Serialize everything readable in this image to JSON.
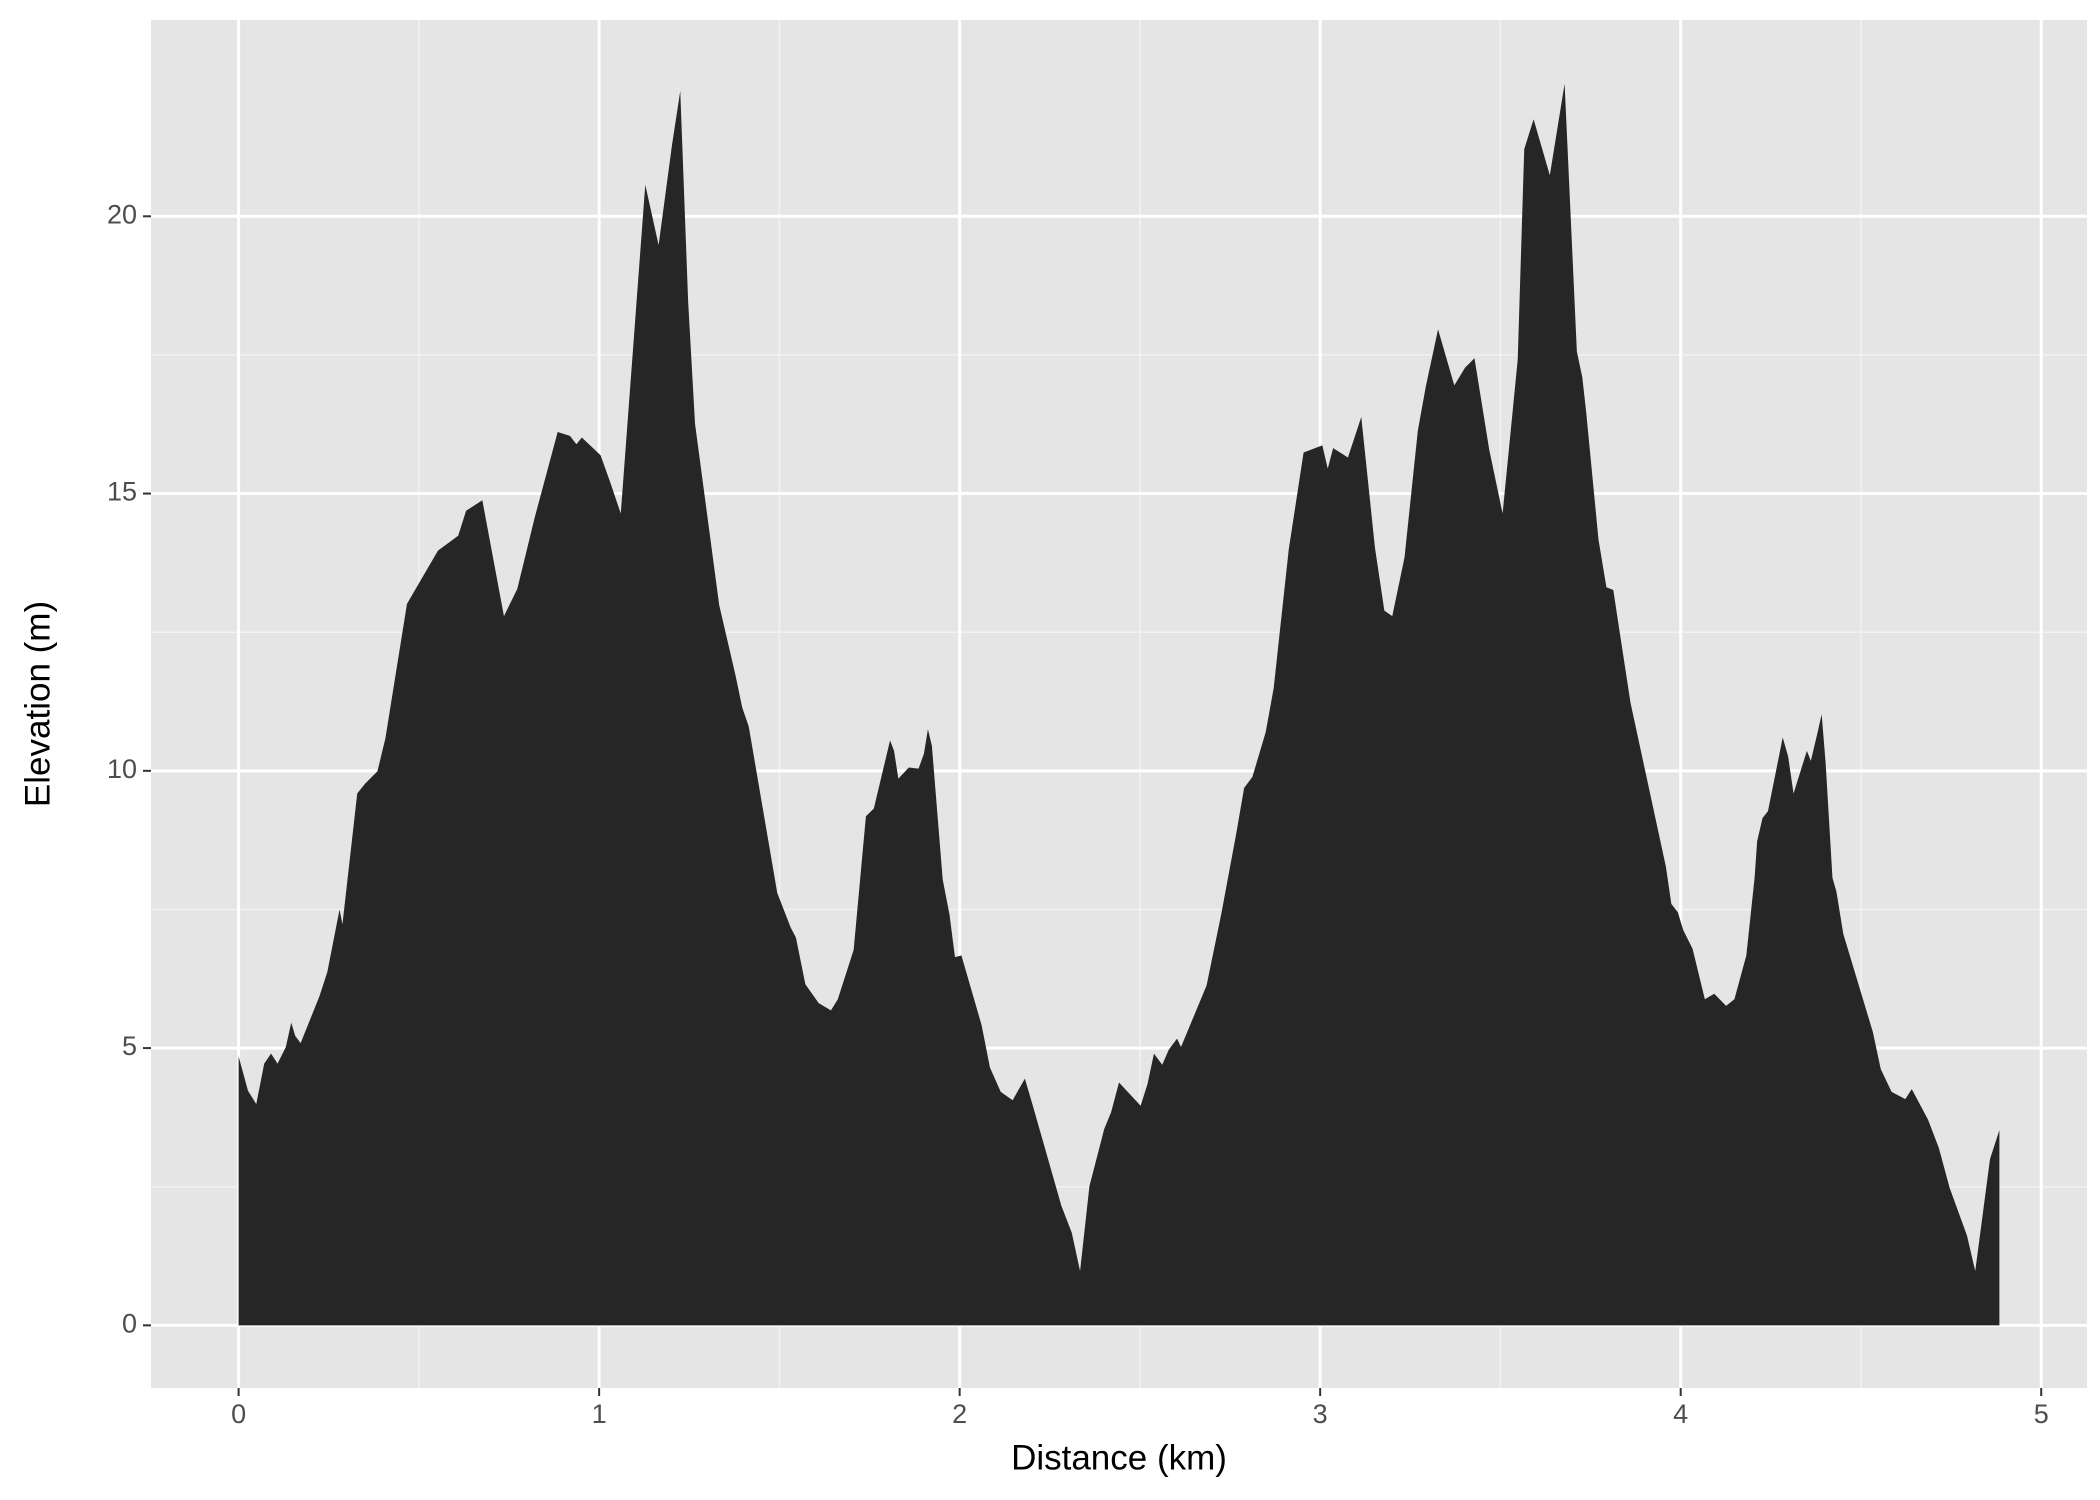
{
  "chart_data": {
    "type": "area",
    "x_label": "Distance (km)",
    "y_label": "Elevation (m)",
    "color": "#262626",
    "background": "#e5e5e5",
    "grid": true,
    "xlim": [
      -0.243,
      5.127
    ],
    "ylim": [
      -1.13,
      23.54
    ],
    "xticks": [
      0,
      1,
      2,
      3,
      4,
      5
    ],
    "yticks": [
      0,
      5,
      10,
      15,
      20
    ],
    "x": [
      0,
      0.026,
      0.049,
      0.071,
      0.09,
      0.108,
      0.131,
      0.146,
      0.157,
      0.172,
      0.224,
      0.246,
      0.28,
      0.288,
      0.302,
      0.317,
      0.329,
      0.351,
      0.385,
      0.407,
      0.467,
      0.553,
      0.609,
      0.631,
      0.676,
      0.736,
      0.773,
      0.821,
      0.885,
      0.919,
      0.937,
      0.952,
      1.004,
      1.031,
      1.06,
      1.128,
      1.165,
      1.202,
      1.225,
      1.247,
      1.266,
      1.333,
      1.378,
      1.397,
      1.415,
      1.494,
      1.531,
      1.546,
      1.572,
      1.609,
      1.643,
      1.662,
      1.706,
      1.74,
      1.762,
      1.792,
      1.807,
      1.818,
      1.83,
      1.859,
      1.886,
      1.901,
      1.912,
      1.923,
      1.953,
      1.972,
      1.987,
      2.005,
      2.061,
      2.084,
      2.114,
      2.147,
      2.181,
      2.203,
      2.282,
      2.311,
      2.334,
      2.36,
      2.401,
      2.42,
      2.442,
      2.502,
      2.521,
      2.539,
      2.562,
      2.58,
      2.603,
      2.614,
      2.685,
      2.726,
      2.767,
      2.789,
      2.812,
      2.849,
      2.871,
      2.913,
      2.954,
      3.006,
      3.021,
      3.036,
      3.077,
      3.114,
      3.152,
      3.178,
      3.2,
      3.234,
      3.271,
      3.293,
      3.327,
      3.372,
      3.402,
      3.428,
      3.469,
      3.506,
      3.548,
      3.566,
      3.592,
      3.637,
      3.678,
      3.712,
      3.727,
      3.738,
      3.772,
      3.794,
      3.813,
      3.832,
      3.861,
      3.959,
      3.974,
      3.992,
      4.007,
      4.033,
      4.067,
      4.093,
      4.126,
      4.149,
      4.182,
      4.205,
      4.212,
      4.227,
      4.242,
      4.283,
      4.298,
      4.313,
      4.35,
      4.361,
      4.38,
      4.391,
      4.402,
      4.421,
      4.432,
      4.451,
      4.533,
      4.555,
      4.585,
      4.623,
      4.641,
      4.686,
      4.716,
      4.746,
      4.794,
      4.817,
      4.858,
      4.884
    ],
    "values": [
      4.85,
      4.23,
      3.99,
      4.72,
      4.9,
      4.72,
      5.02,
      5.46,
      5.22,
      5.09,
      5.93,
      6.37,
      7.5,
      7.23,
      8.04,
      8.9,
      9.59,
      9.77,
      9.99,
      10.58,
      13.01,
      13.97,
      14.24,
      14.69,
      14.88,
      12.79,
      13.28,
      14.56,
      16.11,
      16.04,
      15.89,
      16.01,
      15.69,
      15.2,
      14.64,
      20.57,
      19.48,
      21.28,
      22.26,
      18.45,
      16.26,
      12.99,
      11.73,
      11.14,
      10.8,
      7.8,
      7.18,
      6.99,
      6.15,
      5.81,
      5.68,
      5.88,
      6.77,
      9.18,
      9.32,
      10.14,
      10.55,
      10.36,
      9.86,
      10.06,
      10.04,
      10.31,
      10.75,
      10.45,
      8.04,
      7.4,
      6.64,
      6.67,
      5.41,
      4.65,
      4.21,
      4.06,
      4.45,
      3.96,
      2.16,
      1.67,
      0.98,
      2.51,
      3.54,
      3.84,
      4.38,
      3.96,
      4.35,
      4.9,
      4.7,
      4.97,
      5.17,
      5.02,
      6.13,
      7.43,
      8.86,
      9.69,
      9.89,
      10.7,
      11.49,
      14.0,
      15.74,
      15.87,
      15.45,
      15.82,
      15.65,
      16.38,
      14.02,
      12.89,
      12.79,
      13.85,
      16.14,
      16.93,
      17.96,
      16.95,
      17.27,
      17.44,
      15.79,
      14.64,
      17.42,
      21.21,
      21.75,
      20.74,
      22.39,
      17.56,
      17.1,
      16.46,
      14.17,
      13.31,
      13.26,
      12.45,
      11.22,
      8.27,
      7.6,
      7.45,
      7.13,
      6.79,
      5.88,
      5.98,
      5.76,
      5.88,
      6.67,
      8.07,
      8.73,
      9.15,
      9.27,
      10.6,
      10.26,
      9.59,
      10.36,
      10.18,
      10.7,
      11.02,
      10.14,
      8.07,
      7.82,
      7.06,
      5.29,
      4.62,
      4.21,
      4.08,
      4.26,
      3.71,
      3.2,
      2.48,
      1.62,
      0.98,
      3.0,
      3.52
    ]
  }
}
